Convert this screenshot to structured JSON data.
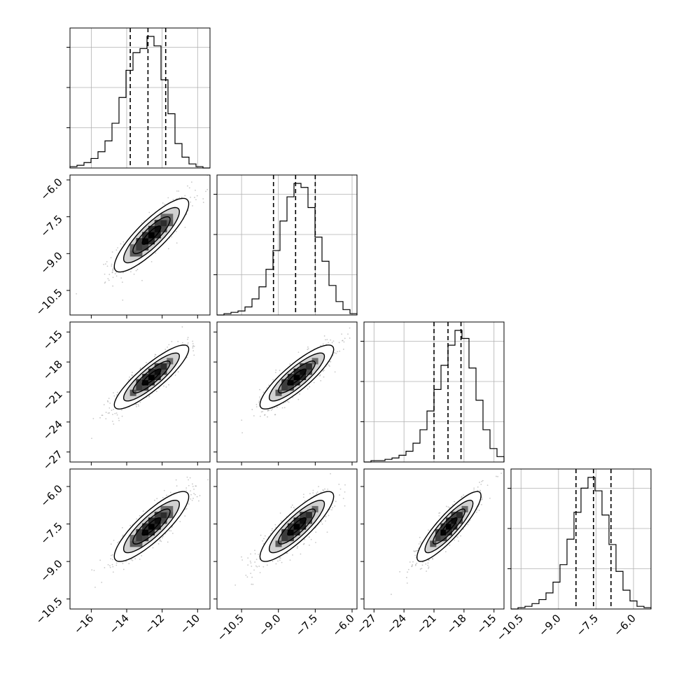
{
  "chart_data": {
    "type": "corner",
    "n_params": 4,
    "quantile_lines": "dashed",
    "grid": true,
    "colors": {
      "ink": "#000000",
      "grid": "#b0b0b0",
      "sample": "#9a9a9a"
    },
    "params": [
      {
        "range": [
          -17.2,
          -9.3
        ],
        "ticks": [
          -16,
          -14,
          -12,
          -10
        ],
        "tick_labels": [
          "−16",
          "−14",
          "−12",
          "−10"
        ],
        "quantiles": [
          -13.8,
          -12.8,
          -11.8
        ],
        "mean": -12.6,
        "sd": 1.05
      },
      {
        "range": [
          -11.5,
          -5.8
        ],
        "ticks": [
          -10.5,
          -9.0,
          -7.5,
          -6.0
        ],
        "tick_labels": [
          "−10.5",
          "−9.0",
          "−7.5",
          "−6.0"
        ],
        "quantiles": [
          -9.2,
          -8.3,
          -7.5
        ],
        "mean": -8.25,
        "sd": 0.75
      },
      {
        "range": [
          -28.0,
          -14.0
        ],
        "ticks": [
          -27,
          -24,
          -21,
          -18,
          -15
        ],
        "tick_labels": [
          "−27",
          "−24",
          "−21",
          "−18",
          "−15"
        ],
        "quantiles": [
          -21.0,
          -19.6,
          -18.3
        ],
        "mean": -19.5,
        "sd": 1.6
      },
      {
        "range": [
          -10.9,
          -5.3
        ],
        "ticks": [
          -10.5,
          -9.0,
          -7.5,
          -6.0
        ],
        "tick_labels": [
          "−10.5",
          "−9.0",
          "−7.5",
          "−6.0"
        ],
        "quantiles": [
          -8.3,
          -7.6,
          -6.9
        ],
        "mean": -7.6,
        "sd": 0.7
      }
    ],
    "histograms": [
      {
        "bins": 20,
        "counts": [
          1,
          2,
          4,
          7,
          12,
          20,
          33,
          52,
          72,
          85,
          88,
          97,
          90,
          65,
          40,
          18,
          8,
          3,
          1,
          0
        ]
      },
      {
        "bins": 20,
        "counts": [
          0,
          1,
          2,
          3,
          6,
          12,
          21,
          34,
          48,
          70,
          88,
          98,
          95,
          80,
          58,
          40,
          22,
          10,
          4,
          1
        ]
      },
      {
        "bins": 20,
        "counts": [
          0,
          1,
          1,
          2,
          3,
          5,
          8,
          14,
          24,
          38,
          54,
          72,
          87,
          98,
          92,
          70,
          46,
          24,
          10,
          4
        ]
      },
      {
        "bins": 20,
        "counts": [
          0,
          1,
          2,
          4,
          7,
          12,
          20,
          33,
          52,
          72,
          90,
          98,
          88,
          70,
          48,
          28,
          14,
          6,
          2,
          1
        ]
      }
    ],
    "correlations": [
      {
        "pair": [
          1,
          0
        ],
        "rho": 0.85
      },
      {
        "pair": [
          2,
          0
        ],
        "rho": 0.87
      },
      {
        "pair": [
          2,
          1
        ],
        "rho": 0.86
      },
      {
        "pair": [
          3,
          0
        ],
        "rho": 0.85
      },
      {
        "pair": [
          3,
          1
        ],
        "rho": 0.86
      },
      {
        "pair": [
          3,
          2
        ],
        "rho": 0.88
      }
    ],
    "contour_levels_sigma": [
      0.5,
      1.0,
      1.5,
      2.0
    ]
  }
}
